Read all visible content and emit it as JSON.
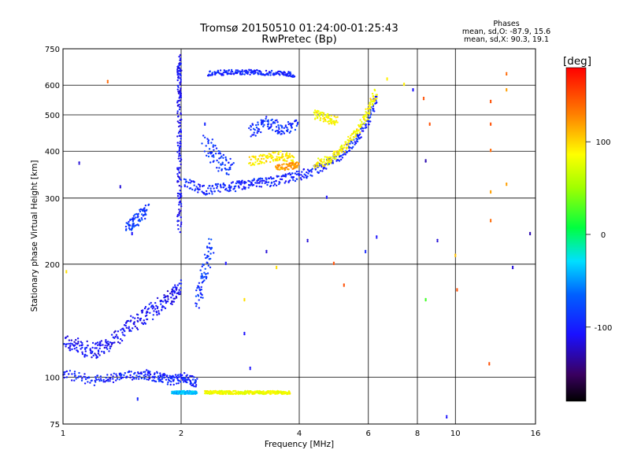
{
  "header": {
    "title": "Tromsø 20150510 01:24:00-01:25:43",
    "subtitle": "RwPretec (Bp)",
    "stats_title": "Phases",
    "stats_o": "mean, sd,O: -87.9, 15.6",
    "stats_x": "mean, sd,X:  90.3, 19.1"
  },
  "colorbar": {
    "label": "[deg]",
    "ticks": [
      {
        "value": 100,
        "label": "100"
      },
      {
        "value": 0,
        "label": "0"
      },
      {
        "value": -100,
        "label": "-100"
      }
    ],
    "range": [
      -180,
      180
    ],
    "scale": "rainbow"
  },
  "chart_data": {
    "type": "scatter",
    "title": "Tromsø 20150510 01:24:00-01:25:43",
    "subtitle": "RwPretec (Bp)",
    "xlabel": "Frequency [MHz]",
    "ylabel": "Stationary phase Virtual Height [km]",
    "x_scale": "log",
    "y_scale": "log",
    "xlim": [
      1,
      16
    ],
    "ylim": [
      75,
      750
    ],
    "x_ticks": [
      {
        "value": 1,
        "label": "1"
      },
      {
        "value": 2,
        "label": "2"
      },
      {
        "value": 4,
        "label": "4"
      },
      {
        "value": 6,
        "label": "6"
      },
      {
        "value": 8,
        "label": "8"
      },
      {
        "value": 10,
        "label": "10"
      },
      {
        "value": 16,
        "label": "16"
      }
    ],
    "y_ticks": [
      {
        "value": 75,
        "label": "75"
      },
      {
        "value": 100,
        "label": "100"
      },
      {
        "value": 200,
        "label": "200"
      },
      {
        "value": 300,
        "label": "300"
      },
      {
        "value": 400,
        "label": "400"
      },
      {
        "value": 500,
        "label": "500"
      },
      {
        "value": 600,
        "label": "600"
      },
      {
        "value": 750,
        "label": "750"
      }
    ],
    "grid": true,
    "legend": "colorbar-right",
    "traces": [
      {
        "f": [
          1.0,
          1.1,
          1.2,
          1.3,
          1.45,
          1.6,
          1.75,
          1.9,
          2.0
        ],
        "h": [
          125,
          120,
          118,
          122,
          135,
          145,
          155,
          165,
          175
        ],
        "phase": -110,
        "spread": 0.05
      },
      {
        "f": [
          1.0,
          1.2,
          1.4,
          1.6,
          1.75,
          1.9,
          2.05,
          2.2
        ],
        "h": [
          102,
          98,
          100,
          102,
          100,
          98,
          100,
          96
        ],
        "phase": -100,
        "spread": 0.03
      },
      {
        "f": [
          1.98,
          1.98,
          1.98,
          1.98,
          1.98,
          1.98
        ],
        "h": [
          250,
          320,
          420,
          540,
          640,
          700
        ],
        "phase": -110,
        "spread": 0.04
      },
      {
        "f": [
          2.05,
          2.3,
          2.6,
          2.9,
          3.2,
          3.6,
          4.0,
          4.5,
          5.0,
          5.5,
          6.0,
          6.3
        ],
        "h": [
          330,
          315,
          320,
          325,
          330,
          335,
          345,
          360,
          385,
          420,
          480,
          560
        ],
        "phase": -100,
        "spread": 0.03
      },
      {
        "f": [
          2.35,
          2.6,
          2.9,
          3.2,
          3.6,
          3.9
        ],
        "h": [
          645,
          648,
          650,
          648,
          645,
          640
        ],
        "phase": -100,
        "spread": 0.015
      },
      {
        "f": [
          3.0,
          3.3,
          3.6,
          4.0
        ],
        "h": [
          450,
          480,
          460,
          470
        ],
        "phase": -95,
        "spread": 0.04
      },
      {
        "f": [
          2.3,
          2.5,
          2.7
        ],
        "h": [
          420,
          380,
          360
        ],
        "phase": -90,
        "spread": 0.06
      },
      {
        "f": [
          3.0,
          3.3,
          3.6,
          3.9
        ],
        "h": [
          375,
          385,
          390,
          380
        ],
        "phase": 95,
        "spread": 0.03
      },
      {
        "f": [
          3.5,
          3.8,
          4.0
        ],
        "h": [
          360,
          365,
          370
        ],
        "phase": 120,
        "spread": 0.02
      },
      {
        "f": [
          4.4,
          4.8,
          5.2,
          5.6,
          6.0,
          6.3
        ],
        "h": [
          370,
          380,
          410,
          450,
          510,
          580
        ],
        "phase": 90,
        "spread": 0.03
      },
      {
        "f": [
          4.4,
          4.7,
          5.0
        ],
        "h": [
          500,
          490,
          480
        ],
        "phase": 90,
        "spread": 0.03
      },
      {
        "f": [
          2.3,
          2.45,
          2.6,
          2.8,
          3.0,
          3.2,
          3.4,
          3.6,
          3.8
        ],
        "h": [
          91,
          91,
          91,
          91,
          91,
          91,
          91,
          91,
          91
        ],
        "phase": 85,
        "spread": 0.01
      },
      {
        "f": [
          1.9,
          2.0,
          2.1,
          2.2
        ],
        "h": [
          91,
          91,
          91,
          91
        ],
        "phase": -40,
        "spread": 0.01
      },
      {
        "f": [
          1.45,
          1.55,
          1.65
        ],
        "h": [
          250,
          265,
          280
        ],
        "phase": -90,
        "spread": 0.04
      },
      {
        "f": [
          2.2,
          2.3,
          2.4
        ],
        "h": [
          160,
          190,
          230
        ],
        "phase": -90,
        "spread": 0.06
      }
    ],
    "scatter": [
      {
        "f": 1.1,
        "h": 370,
        "phase": -120
      },
      {
        "f": 1.3,
        "h": 610,
        "phase": 140
      },
      {
        "f": 1.4,
        "h": 320,
        "phase": -120
      },
      {
        "f": 1.5,
        "h": 240,
        "phase": -110
      },
      {
        "f": 1.02,
        "h": 190,
        "phase": 100
      },
      {
        "f": 2.3,
        "h": 470,
        "phase": -100
      },
      {
        "f": 2.6,
        "h": 200,
        "phase": -110
      },
      {
        "f": 2.9,
        "h": 160,
        "phase": 100
      },
      {
        "f": 3.3,
        "h": 215,
        "phase": -120
      },
      {
        "f": 3.5,
        "h": 195,
        "phase": 100
      },
      {
        "f": 4.2,
        "h": 230,
        "phase": -120
      },
      {
        "f": 4.7,
        "h": 300,
        "phase": -110
      },
      {
        "f": 4.9,
        "h": 200,
        "phase": 150
      },
      {
        "f": 5.2,
        "h": 175,
        "phase": 150
      },
      {
        "f": 5.9,
        "h": 215,
        "phase": -100
      },
      {
        "f": 6.3,
        "h": 235,
        "phase": -110
      },
      {
        "f": 6.7,
        "h": 620,
        "phase": 95
      },
      {
        "f": 7.4,
        "h": 600,
        "phase": 95
      },
      {
        "f": 7.8,
        "h": 580,
        "phase": -110
      },
      {
        "f": 8.3,
        "h": 550,
        "phase": 150
      },
      {
        "f": 8.4,
        "h": 375,
        "phase": -130
      },
      {
        "f": 8.4,
        "h": 160,
        "phase": 20
      },
      {
        "f": 8.6,
        "h": 470,
        "phase": 150
      },
      {
        "f": 9.0,
        "h": 230,
        "phase": -120
      },
      {
        "f": 9.5,
        "h": 78,
        "phase": -110
      },
      {
        "f": 10.0,
        "h": 210,
        "phase": 110
      },
      {
        "f": 10.1,
        "h": 170,
        "phase": 150
      },
      {
        "f": 12.3,
        "h": 540,
        "phase": 150
      },
      {
        "f": 12.3,
        "h": 470,
        "phase": 150
      },
      {
        "f": 12.3,
        "h": 400,
        "phase": 140
      },
      {
        "f": 12.3,
        "h": 310,
        "phase": 120
      },
      {
        "f": 12.3,
        "h": 260,
        "phase": 140
      },
      {
        "f": 12.2,
        "h": 108,
        "phase": 150
      },
      {
        "f": 13.5,
        "h": 640,
        "phase": 140
      },
      {
        "f": 13.5,
        "h": 580,
        "phase": 120
      },
      {
        "f": 13.5,
        "h": 325,
        "phase": 120
      },
      {
        "f": 14.0,
        "h": 195,
        "phase": -120
      },
      {
        "f": 15.5,
        "h": 240,
        "phase": -130
      },
      {
        "f": 3.0,
        "h": 105,
        "phase": -110
      },
      {
        "f": 2.9,
        "h": 130,
        "phase": -110
      },
      {
        "f": 1.55,
        "h": 87,
        "phase": -100
      }
    ]
  }
}
